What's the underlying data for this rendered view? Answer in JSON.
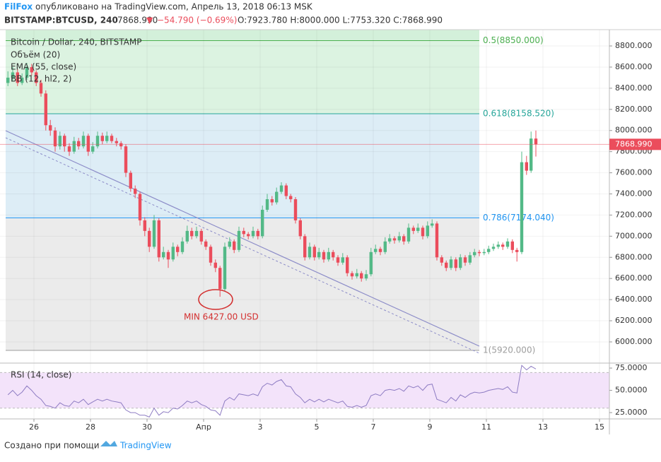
{
  "header": {
    "author": "FilFox",
    "published": "опубликовано на TradingView.com, Апрель 13, 2018 06:13 MSK",
    "symbol": "BITSTAMP:BTCUSD, 240",
    "price": "7868.990",
    "arrow": "▼",
    "change": "−54.790 (−0.69%)",
    "ohlc": "O:7923.780 H:8000.000 L:7753.320 C:7868.990"
  },
  "legend": [
    "Bitcoin / Dollar, 240, BITSTAMP",
    "Объём (20)",
    "EMA (55, close)",
    "BB (12, hl2, 2)"
  ],
  "chart_data": {
    "type": "candlestick",
    "up_color": "#53b987",
    "down_color": "#eb4d5c",
    "xlim": [
      24.8,
      46.35
    ],
    "xticks": [
      26,
      28,
      30,
      {
        "value": 32,
        "label": "Апр"
      },
      {
        "value": 34,
        "label": "3"
      },
      {
        "value": 36,
        "label": "5"
      },
      {
        "value": 38,
        "label": "7"
      },
      {
        "value": 40,
        "label": "9"
      },
      {
        "value": 42,
        "label": "11"
      },
      {
        "value": 44,
        "label": "13"
      },
      {
        "value": 46,
        "label": "15"
      }
    ],
    "ylim": [
      5806,
      8954
    ],
    "yticks": [
      {
        "value": 8800,
        "label": "8800.000"
      },
      {
        "value": 8600,
        "label": "8600.000"
      },
      {
        "value": 8400,
        "label": "8400.000"
      },
      {
        "value": 8200,
        "label": "8200.000"
      },
      {
        "value": 8000,
        "label": "8000.000"
      },
      {
        "value": 7800,
        "label": "7800.000"
      },
      {
        "value": 7600,
        "label": "7600.000"
      },
      {
        "value": 7400,
        "label": "7400.000"
      },
      {
        "value": 7200,
        "label": "7200.000"
      },
      {
        "value": 7000,
        "label": "7000.000"
      },
      {
        "value": 6800,
        "label": "6800.000"
      },
      {
        "value": 6600,
        "label": "6600.000"
      },
      {
        "value": 6400,
        "label": "6400.000"
      },
      {
        "value": 6200,
        "label": "6200.000"
      },
      {
        "value": 6000,
        "label": "6000.000"
      }
    ],
    "grid": true,
    "last_price": {
      "value": 7868.99,
      "label": "7868.990"
    },
    "fib_levels": [
      {
        "value": 8850,
        "label": "0.5(8850.000)",
        "color": "#4caf50",
        "zone": "#d3f0da"
      },
      {
        "value": 8158.52,
        "label": "0.618(8158.520)",
        "color": "#26a69a",
        "zone": "#d5e9f4"
      },
      {
        "value": 7174.04,
        "label": "0.786(7174.040)",
        "color": "#2196f3",
        "zone": "#e6e6e6"
      },
      {
        "value": 5920,
        "label": "1(5920.000)",
        "color": "#9e9e9e"
      }
    ],
    "annotation": "MIN 6427.00 USD",
    "x": [
      25.08,
      25.25,
      25.42,
      25.58,
      25.75,
      25.92,
      26.08,
      26.25,
      26.42,
      26.58,
      26.75,
      26.92,
      27.08,
      27.25,
      27.42,
      27.58,
      27.75,
      27.92,
      28.08,
      28.25,
      28.42,
      28.58,
      28.75,
      28.92,
      29.08,
      29.25,
      29.42,
      29.58,
      29.75,
      29.92,
      30.08,
      30.25,
      30.42,
      30.58,
      30.75,
      30.92,
      31.08,
      31.25,
      31.42,
      31.58,
      31.75,
      31.92,
      32.08,
      32.25,
      32.42,
      32.58,
      32.75,
      32.92,
      33.08,
      33.25,
      33.42,
      33.58,
      33.75,
      33.92,
      34.08,
      34.25,
      34.42,
      34.58,
      34.75,
      34.92,
      35.08,
      35.25,
      35.42,
      35.58,
      35.75,
      35.92,
      36.08,
      36.25,
      36.42,
      36.58,
      36.75,
      36.92,
      37.08,
      37.25,
      37.42,
      37.58,
      37.75,
      37.92,
      38.08,
      38.25,
      38.42,
      38.58,
      38.75,
      38.92,
      39.08,
      39.25,
      39.42,
      39.58,
      39.75,
      39.92,
      40.08,
      40.25,
      40.42,
      40.58,
      40.75,
      40.92,
      41.08,
      41.25,
      41.42,
      41.58,
      41.75,
      41.92,
      42.08,
      42.25,
      42.42,
      42.58,
      42.75,
      42.92,
      43.08,
      43.25,
      43.42,
      43.58,
      43.75
    ],
    "candles": [
      [
        8450,
        8560,
        8420,
        8500
      ],
      [
        8500,
        8600,
        8470,
        8550
      ],
      [
        8550,
        8580,
        8420,
        8450
      ],
      [
        8450,
        8540,
        8430,
        8500
      ],
      [
        8500,
        8640,
        8480,
        8600
      ],
      [
        8600,
        8630,
        8520,
        8550
      ],
      [
        8550,
        8570,
        8420,
        8450
      ],
      [
        8450,
        8480,
        8320,
        8350
      ],
      [
        8350,
        8380,
        8000,
        8050
      ],
      [
        8050,
        8100,
        7950,
        8000
      ],
      [
        8000,
        8030,
        7800,
        7850
      ],
      [
        7850,
        7990,
        7820,
        7950
      ],
      [
        7950,
        7970,
        7800,
        7850
      ],
      [
        7850,
        7880,
        7760,
        7800
      ],
      [
        7800,
        7940,
        7780,
        7900
      ],
      [
        7900,
        7930,
        7820,
        7850
      ],
      [
        7850,
        7990,
        7830,
        7950
      ],
      [
        7950,
        7970,
        7760,
        7800
      ],
      [
        7800,
        7890,
        7780,
        7850
      ],
      [
        7850,
        7990,
        7830,
        7950
      ],
      [
        7950,
        7980,
        7870,
        7900
      ],
      [
        7900,
        7990,
        7880,
        7950
      ],
      [
        7950,
        7970,
        7880,
        7900
      ],
      [
        7900,
        7930,
        7850,
        7880
      ],
      [
        7880,
        7900,
        7820,
        7850
      ],
      [
        7850,
        7870,
        7560,
        7600
      ],
      [
        7600,
        7620,
        7420,
        7450
      ],
      [
        7450,
        7480,
        7360,
        7400
      ],
      [
        7400,
        7420,
        7100,
        7150
      ],
      [
        7150,
        7180,
        7000,
        7050
      ],
      [
        7050,
        7080,
        6850,
        6900
      ],
      [
        6900,
        7200,
        6880,
        7150
      ],
      [
        7150,
        7170,
        6760,
        6800
      ],
      [
        6800,
        6900,
        6780,
        6850
      ],
      [
        6850,
        6870,
        6700,
        6780
      ],
      [
        6780,
        6940,
        6760,
        6900
      ],
      [
        6900,
        6920,
        6810,
        6850
      ],
      [
        6850,
        6990,
        6830,
        6950
      ],
      [
        6950,
        7100,
        6930,
        7050
      ],
      [
        7050,
        7080,
        6970,
        7000
      ],
      [
        7000,
        7090,
        6980,
        7050
      ],
      [
        7050,
        7070,
        6920,
        6950
      ],
      [
        6950,
        6970,
        6870,
        6900
      ],
      [
        6900,
        6920,
        6720,
        6750
      ],
      [
        6750,
        6780,
        6660,
        6700
      ],
      [
        6700,
        6720,
        6427,
        6500
      ],
      [
        6500,
        6940,
        6480,
        6900
      ],
      [
        6900,
        6990,
        6880,
        6950
      ],
      [
        6950,
        6970,
        6840,
        6870
      ],
      [
        6870,
        7090,
        6850,
        7050
      ],
      [
        7050,
        7080,
        6990,
        7020
      ],
      [
        7020,
        7040,
        6970,
        7000
      ],
      [
        7000,
        7090,
        6980,
        7050
      ],
      [
        7050,
        7070,
        6970,
        7000
      ],
      [
        7000,
        7290,
        6980,
        7250
      ],
      [
        7250,
        7400,
        7230,
        7350
      ],
      [
        7350,
        7380,
        7290,
        7320
      ],
      [
        7320,
        7460,
        7300,
        7420
      ],
      [
        7420,
        7510,
        7400,
        7480
      ],
      [
        7480,
        7500,
        7350,
        7380
      ],
      [
        7380,
        7400,
        7320,
        7350
      ],
      [
        7350,
        7370,
        7120,
        7150
      ],
      [
        7150,
        7170,
        6970,
        7000
      ],
      [
        7000,
        7020,
        6770,
        6800
      ],
      [
        6800,
        6940,
        6780,
        6900
      ],
      [
        6900,
        6920,
        6770,
        6800
      ],
      [
        6800,
        6890,
        6780,
        6850
      ],
      [
        6850,
        6870,
        6750,
        6780
      ],
      [
        6780,
        6890,
        6760,
        6850
      ],
      [
        6850,
        6870,
        6770,
        6800
      ],
      [
        6800,
        6820,
        6720,
        6750
      ],
      [
        6750,
        6840,
        6730,
        6800
      ],
      [
        6800,
        6820,
        6620,
        6650
      ],
      [
        6650,
        6670,
        6590,
        6620
      ],
      [
        6620,
        6690,
        6600,
        6650
      ],
      [
        6650,
        6670,
        6570,
        6600
      ],
      [
        6600,
        6680,
        6580,
        6640
      ],
      [
        6640,
        6890,
        6620,
        6850
      ],
      [
        6850,
        6920,
        6830,
        6880
      ],
      [
        6880,
        6900,
        6820,
        6850
      ],
      [
        6850,
        6990,
        6830,
        6950
      ],
      [
        6950,
        7020,
        6930,
        6980
      ],
      [
        6980,
        7000,
        6930,
        6960
      ],
      [
        6960,
        7040,
        6940,
        7000
      ],
      [
        7000,
        7020,
        6920,
        6950
      ],
      [
        6950,
        7120,
        6930,
        7080
      ],
      [
        7080,
        7100,
        7020,
        7050
      ],
      [
        7050,
        7120,
        7030,
        7080
      ],
      [
        7080,
        7100,
        6970,
        7000
      ],
      [
        7000,
        7140,
        6980,
        7100
      ],
      [
        7100,
        7160,
        7080,
        7120
      ],
      [
        7120,
        7140,
        6770,
        6800
      ],
      [
        6800,
        6820,
        6720,
        6750
      ],
      [
        6750,
        6770,
        6670,
        6700
      ],
      [
        6700,
        6810,
        6680,
        6780
      ],
      [
        6780,
        6800,
        6670,
        6700
      ],
      [
        6700,
        6830,
        6680,
        6800
      ],
      [
        6800,
        6820,
        6720,
        6750
      ],
      [
        6750,
        6850,
        6730,
        6820
      ],
      [
        6820,
        6880,
        6800,
        6850
      ],
      [
        6850,
        6870,
        6810,
        6840
      ],
      [
        6840,
        6880,
        6820,
        6850
      ],
      [
        6850,
        6910,
        6830,
        6880
      ],
      [
        6880,
        6930,
        6860,
        6900
      ],
      [
        6900,
        6950,
        6880,
        6920
      ],
      [
        6920,
        6940,
        6870,
        6900
      ],
      [
        6900,
        6980,
        6880,
        6950
      ],
      [
        6950,
        6970,
        6840,
        6870
      ],
      [
        6870,
        6890,
        6760,
        6850
      ],
      [
        6850,
        7800,
        6830,
        7700
      ],
      [
        7700,
        7760,
        7580,
        7620
      ],
      [
        7620,
        7990,
        7600,
        7924
      ],
      [
        7923.78,
        8000,
        7753.32,
        7868.99
      ]
    ],
    "rsi": {
      "name": "RSI (14, close)",
      "color": "#8e7cc3",
      "band_color": "#f3e3fa",
      "bands": [
        30,
        70
      ],
      "ylim": [
        18.7,
        79.8
      ],
      "yticks": [
        {
          "value": 75,
          "label": "75.0000"
        },
        {
          "value": 50,
          "label": "50.0000"
        },
        {
          "value": 25,
          "label": "25.0000"
        }
      ],
      "values": [
        45,
        50,
        44,
        48,
        55,
        50,
        44,
        40,
        33,
        32,
        30,
        36,
        33,
        32,
        38,
        36,
        40,
        34,
        37,
        40,
        38,
        40,
        38,
        37,
        36,
        28,
        25,
        25,
        22,
        22,
        20,
        30,
        22,
        26,
        25,
        30,
        29,
        33,
        38,
        36,
        38,
        34,
        32,
        28,
        27,
        22,
        38,
        42,
        39,
        46,
        45,
        44,
        46,
        44,
        54,
        58,
        56,
        60,
        62,
        55,
        54,
        46,
        42,
        36,
        40,
        37,
        40,
        37,
        40,
        38,
        36,
        38,
        32,
        31,
        33,
        31,
        33,
        44,
        46,
        44,
        50,
        51,
        50,
        52,
        49,
        55,
        53,
        55,
        50,
        56,
        57,
        40,
        38,
        36,
        42,
        38,
        45,
        42,
        46,
        48,
        47,
        48,
        50,
        51,
        52,
        51,
        54,
        48,
        47,
        78,
        73,
        77,
        74
      ]
    }
  },
  "footer": {
    "created": "Создано при помощи",
    "brand": "TradingView"
  }
}
